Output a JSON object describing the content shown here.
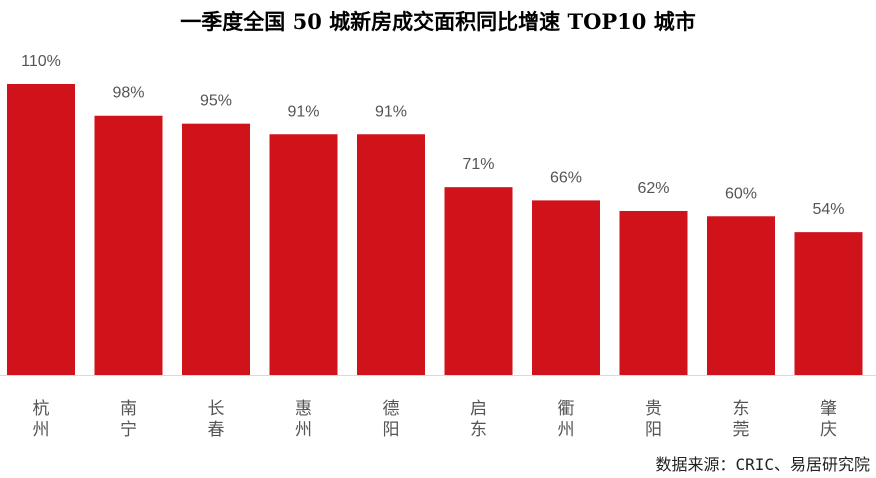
{
  "chart_data": {
    "type": "bar",
    "title": "一季度全国 50 城新房成交面积同比增速 TOP10 城市",
    "categories": [
      "杭州",
      "南宁",
      "长春",
      "惠州",
      "德阳",
      "启东",
      "衢州",
      "贵阳",
      "东莞",
      "肇庆"
    ],
    "values": [
      110,
      98,
      95,
      91,
      91,
      71,
      66,
      62,
      60,
      54
    ],
    "value_labels": [
      "110%",
      "98%",
      "95%",
      "91%",
      "91%",
      "71%",
      "66%",
      "62%",
      "60%",
      "54%"
    ],
    "unit": "%",
    "xlabel": "",
    "ylabel": "",
    "ylim": [
      0,
      110
    ],
    "grid": false,
    "bar_color": "#d0121b",
    "source": "数据来源：CRIC、易居研究院"
  }
}
